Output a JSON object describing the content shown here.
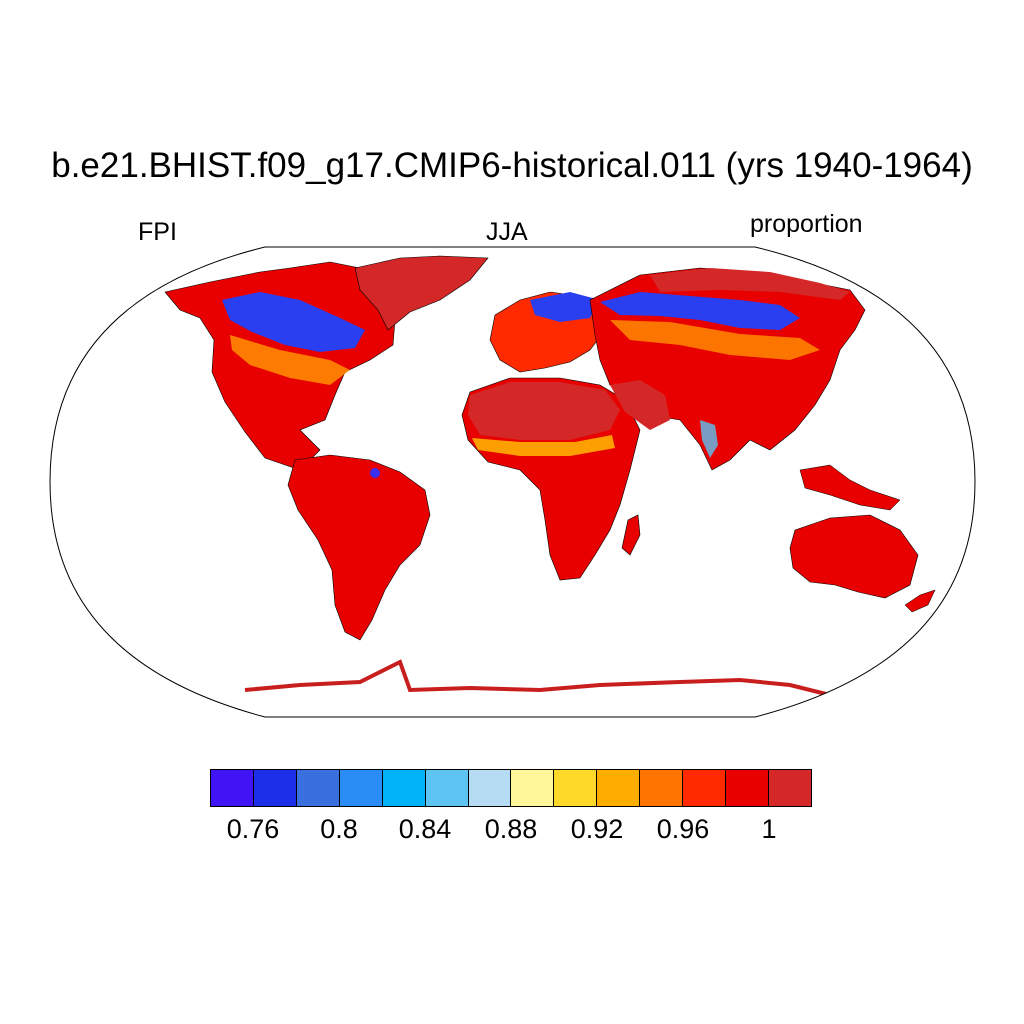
{
  "title": "b.e21.BHIST.f09_g17.CMIP6-historical.011 (yrs 1940-1964)",
  "left_label": "FPI",
  "center_label": "JJA",
  "right_label": "proportion",
  "colorbar": {
    "colors": [
      "#4014f5",
      "#1d2fe8",
      "#3a6fe0",
      "#2a8cf5",
      "#00b2f8",
      "#5cc3f2",
      "#b5dcf2",
      "#fff79a",
      "#ffd92a",
      "#ffad00",
      "#ff7400",
      "#ff2a00",
      "#e80000",
      "#d42828"
    ],
    "tick_labels": [
      "0.76",
      "0.8",
      "0.84",
      "0.88",
      "0.92",
      "0.96",
      "1"
    ]
  }
}
